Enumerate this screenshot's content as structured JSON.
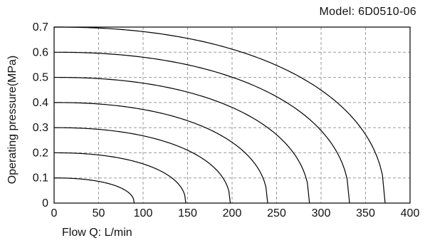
{
  "chart_data": {
    "type": "line",
    "model_label": "Model: 6D0510-06",
    "xlabel": "Flow  Q: L/min",
    "ylabel": "Operating pressure(MPa)",
    "xlim": [
      0,
      400
    ],
    "ylim": [
      0,
      0.7
    ],
    "xticks": [
      "0",
      "50",
      "100",
      "150",
      "200",
      "250",
      "300",
      "350",
      "400"
    ],
    "yticks": [
      "0",
      "0.1",
      "0.2",
      "0.3",
      "0.4",
      "0.5",
      "0.6",
      "0.7"
    ],
    "grid": true,
    "grid_style": "dashed",
    "line_color": "#000000",
    "series": [
      {
        "pressure": 0.1,
        "max_flow": 90
      },
      {
        "pressure": 0.2,
        "max_flow": 148
      },
      {
        "pressure": 0.3,
        "max_flow": 198
      },
      {
        "pressure": 0.4,
        "max_flow": 240
      },
      {
        "pressure": 0.5,
        "max_flow": 287
      },
      {
        "pressure": 0.6,
        "max_flow": 332
      },
      {
        "pressure": 0.7,
        "max_flow": 372
      }
    ]
  }
}
